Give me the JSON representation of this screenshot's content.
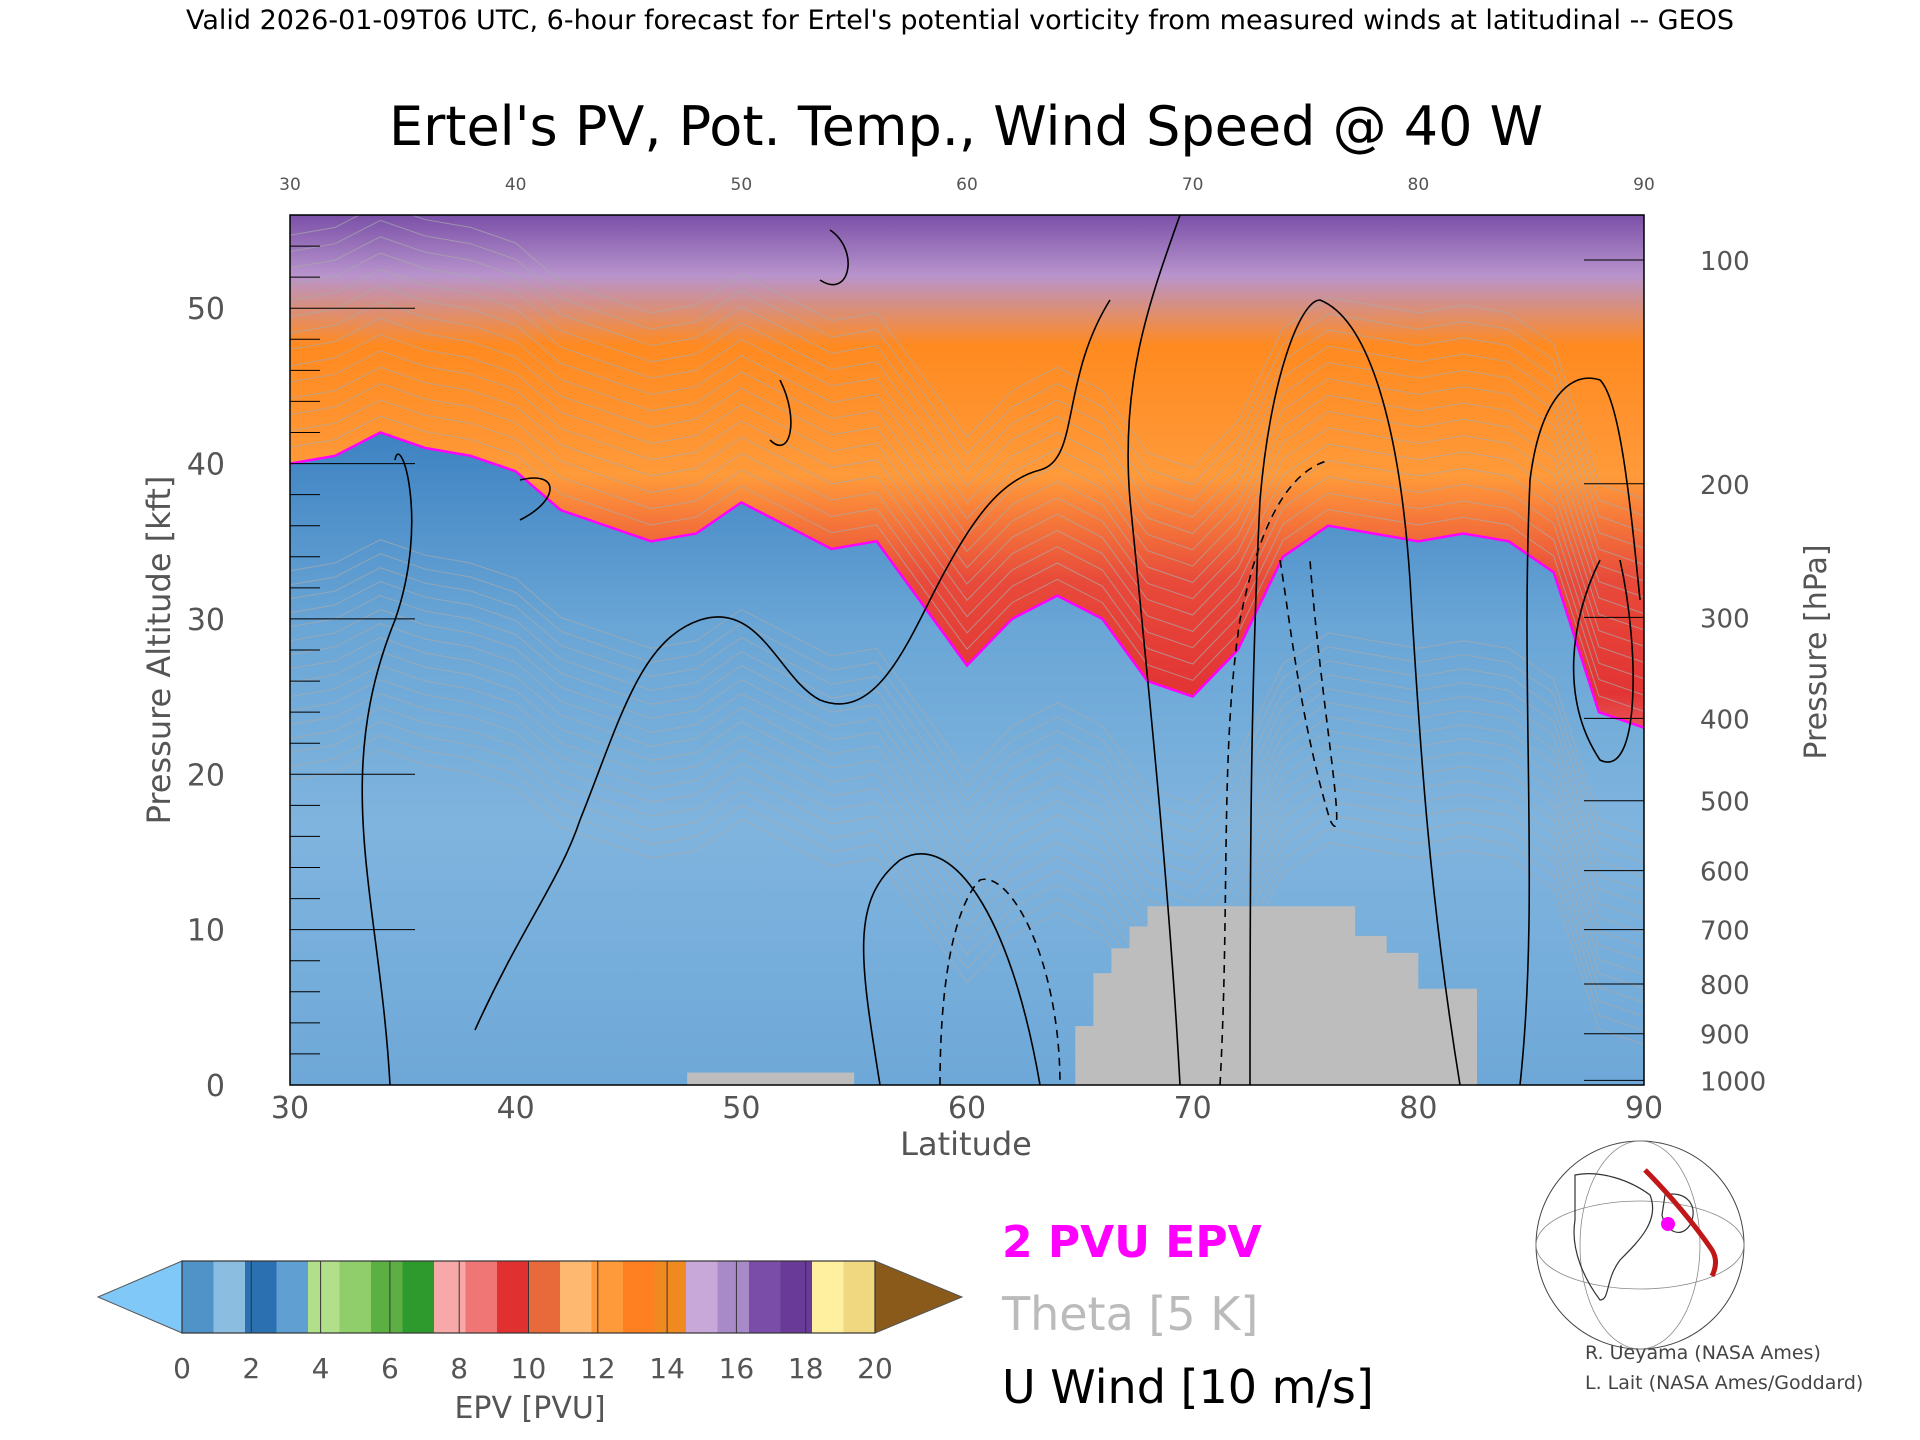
{
  "header": {
    "valid_line": "Valid 2026-01-09T06 UTC, 6-hour forecast for Ertel's potential vorticity from measured winds at latitudinal -- GEOS"
  },
  "chart_data": {
    "type": "heatmap",
    "title": "Ertel's PV, Pot. Temp., Wind Speed @ 40 W",
    "xlabel": "Latitude",
    "ylabel": "Pressure Altitude [kft]",
    "ylabel_right": "Pressure [hPa]",
    "xlim": [
      30,
      90
    ],
    "ylim": [
      0,
      56
    ],
    "x_ticks": [
      "30",
      "40",
      "50",
      "60",
      "70",
      "80",
      "90"
    ],
    "y_ticks": [
      "0",
      "10",
      "20",
      "30",
      "40",
      "50"
    ],
    "pressure_ticks": [
      {
        "label": "1000",
        "kft": 0.3
      },
      {
        "label": "900",
        "kft": 3.3
      },
      {
        "label": "800",
        "kft": 6.5
      },
      {
        "label": "700",
        "kft": 10.0
      },
      {
        "label": "600",
        "kft": 13.8
      },
      {
        "label": "500",
        "kft": 18.3
      },
      {
        "label": "400",
        "kft": 23.6
      },
      {
        "label": "300",
        "kft": 30.1
      },
      {
        "label": "200",
        "kft": 38.7
      },
      {
        "label": "100",
        "kft": 53.1
      }
    ],
    "tropopause_2pvu_kft": [
      [
        30,
        40
      ],
      [
        32,
        40.5
      ],
      [
        34,
        42
      ],
      [
        36,
        41
      ],
      [
        38,
        40.5
      ],
      [
        40,
        39.5
      ],
      [
        42,
        37
      ],
      [
        44,
        36
      ],
      [
        46,
        35
      ],
      [
        48,
        35.5
      ],
      [
        50,
        37.5
      ],
      [
        52,
        36
      ],
      [
        54,
        34.5
      ],
      [
        56,
        35
      ],
      [
        58,
        31
      ],
      [
        60,
        27
      ],
      [
        62,
        30
      ],
      [
        64,
        31.5
      ],
      [
        66,
        30
      ],
      [
        68,
        26
      ],
      [
        70,
        25
      ],
      [
        72,
        28
      ],
      [
        74,
        34
      ],
      [
        76,
        36
      ],
      [
        78,
        35.5
      ],
      [
        80,
        35
      ],
      [
        82,
        35.5
      ],
      [
        84,
        35
      ],
      [
        86,
        33
      ],
      [
        88,
        24
      ],
      [
        90,
        23
      ]
    ],
    "surface_mask_kft": [
      [
        64.8,
        3.8
      ],
      [
        65.6,
        7.2
      ],
      [
        66.4,
        8.8
      ],
      [
        67.2,
        10.2
      ],
      [
        68.0,
        11.5
      ],
      [
        76.0,
        11.5
      ],
      [
        77.2,
        9.6
      ],
      [
        78.6,
        8.5
      ],
      [
        80.0,
        6.2
      ],
      [
        82.6,
        3.0
      ],
      [
        47.6,
        0.8
      ],
      [
        55.0,
        0.8
      ]
    ],
    "colorbar": {
      "label": "EPV [PVU]",
      "ticks": [
        "0",
        "2",
        "4",
        "6",
        "8",
        "10",
        "12",
        "14",
        "16",
        "18",
        "20"
      ],
      "colors": [
        "#4f93c8",
        "#8bbde0",
        "#2b70b0",
        "#5f9fd2",
        "#b2df8a",
        "#8fce6a",
        "#5cb043",
        "#2e9a2e",
        "#f7a8a8",
        "#f07575",
        "#e03030",
        "#e86a3a",
        "#ffb870",
        "#ff9a3a",
        "#ff8020",
        "#f08a20",
        "#c8a8d8",
        "#a98ac8",
        "#7a4ea8",
        "#6a3a98",
        "#fff0a0",
        "#f0d880"
      ],
      "below_color": "#80c8f8",
      "above_color": "#8a5a1a"
    },
    "legend": [
      {
        "label": "2 PVU EPV",
        "color": "#ff00ff"
      },
      {
        "label": "Theta [5 K]",
        "color": "#bbbbbb"
      },
      {
        "label": "U Wind [10 m/s]",
        "color": "#000000"
      }
    ]
  },
  "credits": {
    "line1": "R. Ueyama (NASA Ames)",
    "line2": "L. Lait (NASA Ames/Goddard)"
  },
  "colors": {
    "tropopause": "#ff00ff",
    "theta": "#aaaaaa",
    "wind": "#000000",
    "mask": "#bdbdbd"
  },
  "inset_map_icon": "globe-map-icon"
}
